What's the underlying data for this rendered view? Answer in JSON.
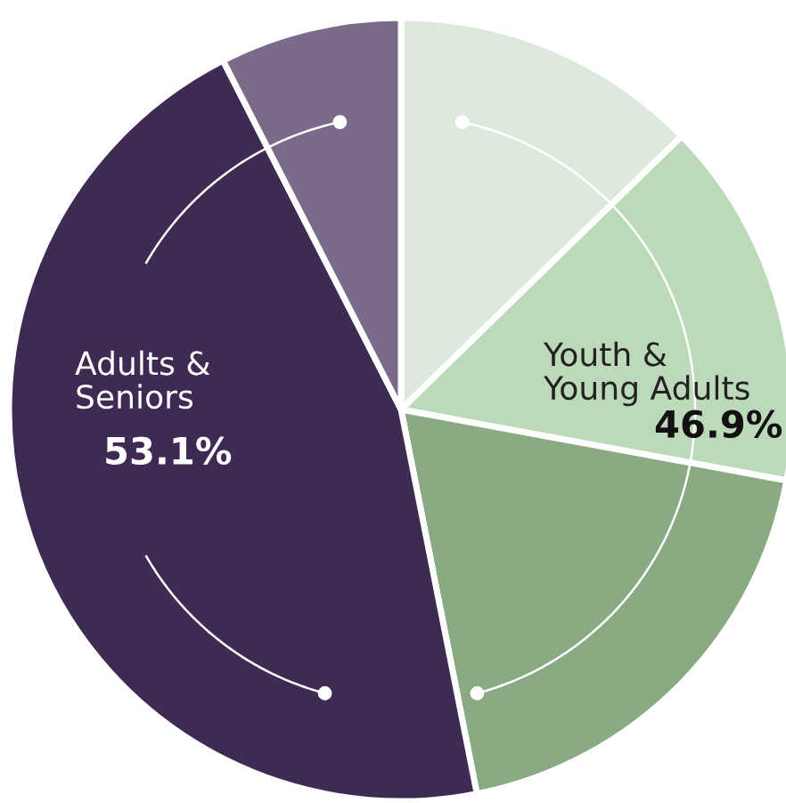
{
  "chart_data": {
    "type": "pie",
    "categories": [
      null,
      null,
      null,
      null,
      null
    ],
    "values": [
      12.7,
      15.2,
      19.0,
      45.6,
      7.5
    ],
    "colors": [
      "#dde9dc",
      "#bcd9b9",
      "#8aaa84",
      "#3e2a52",
      "#7b6a89"
    ],
    "annotations": [
      "Youth &\nYoung Adults",
      "46.9%",
      "Adults &\nSeniors",
      "53.1%"
    ]
  }
}
